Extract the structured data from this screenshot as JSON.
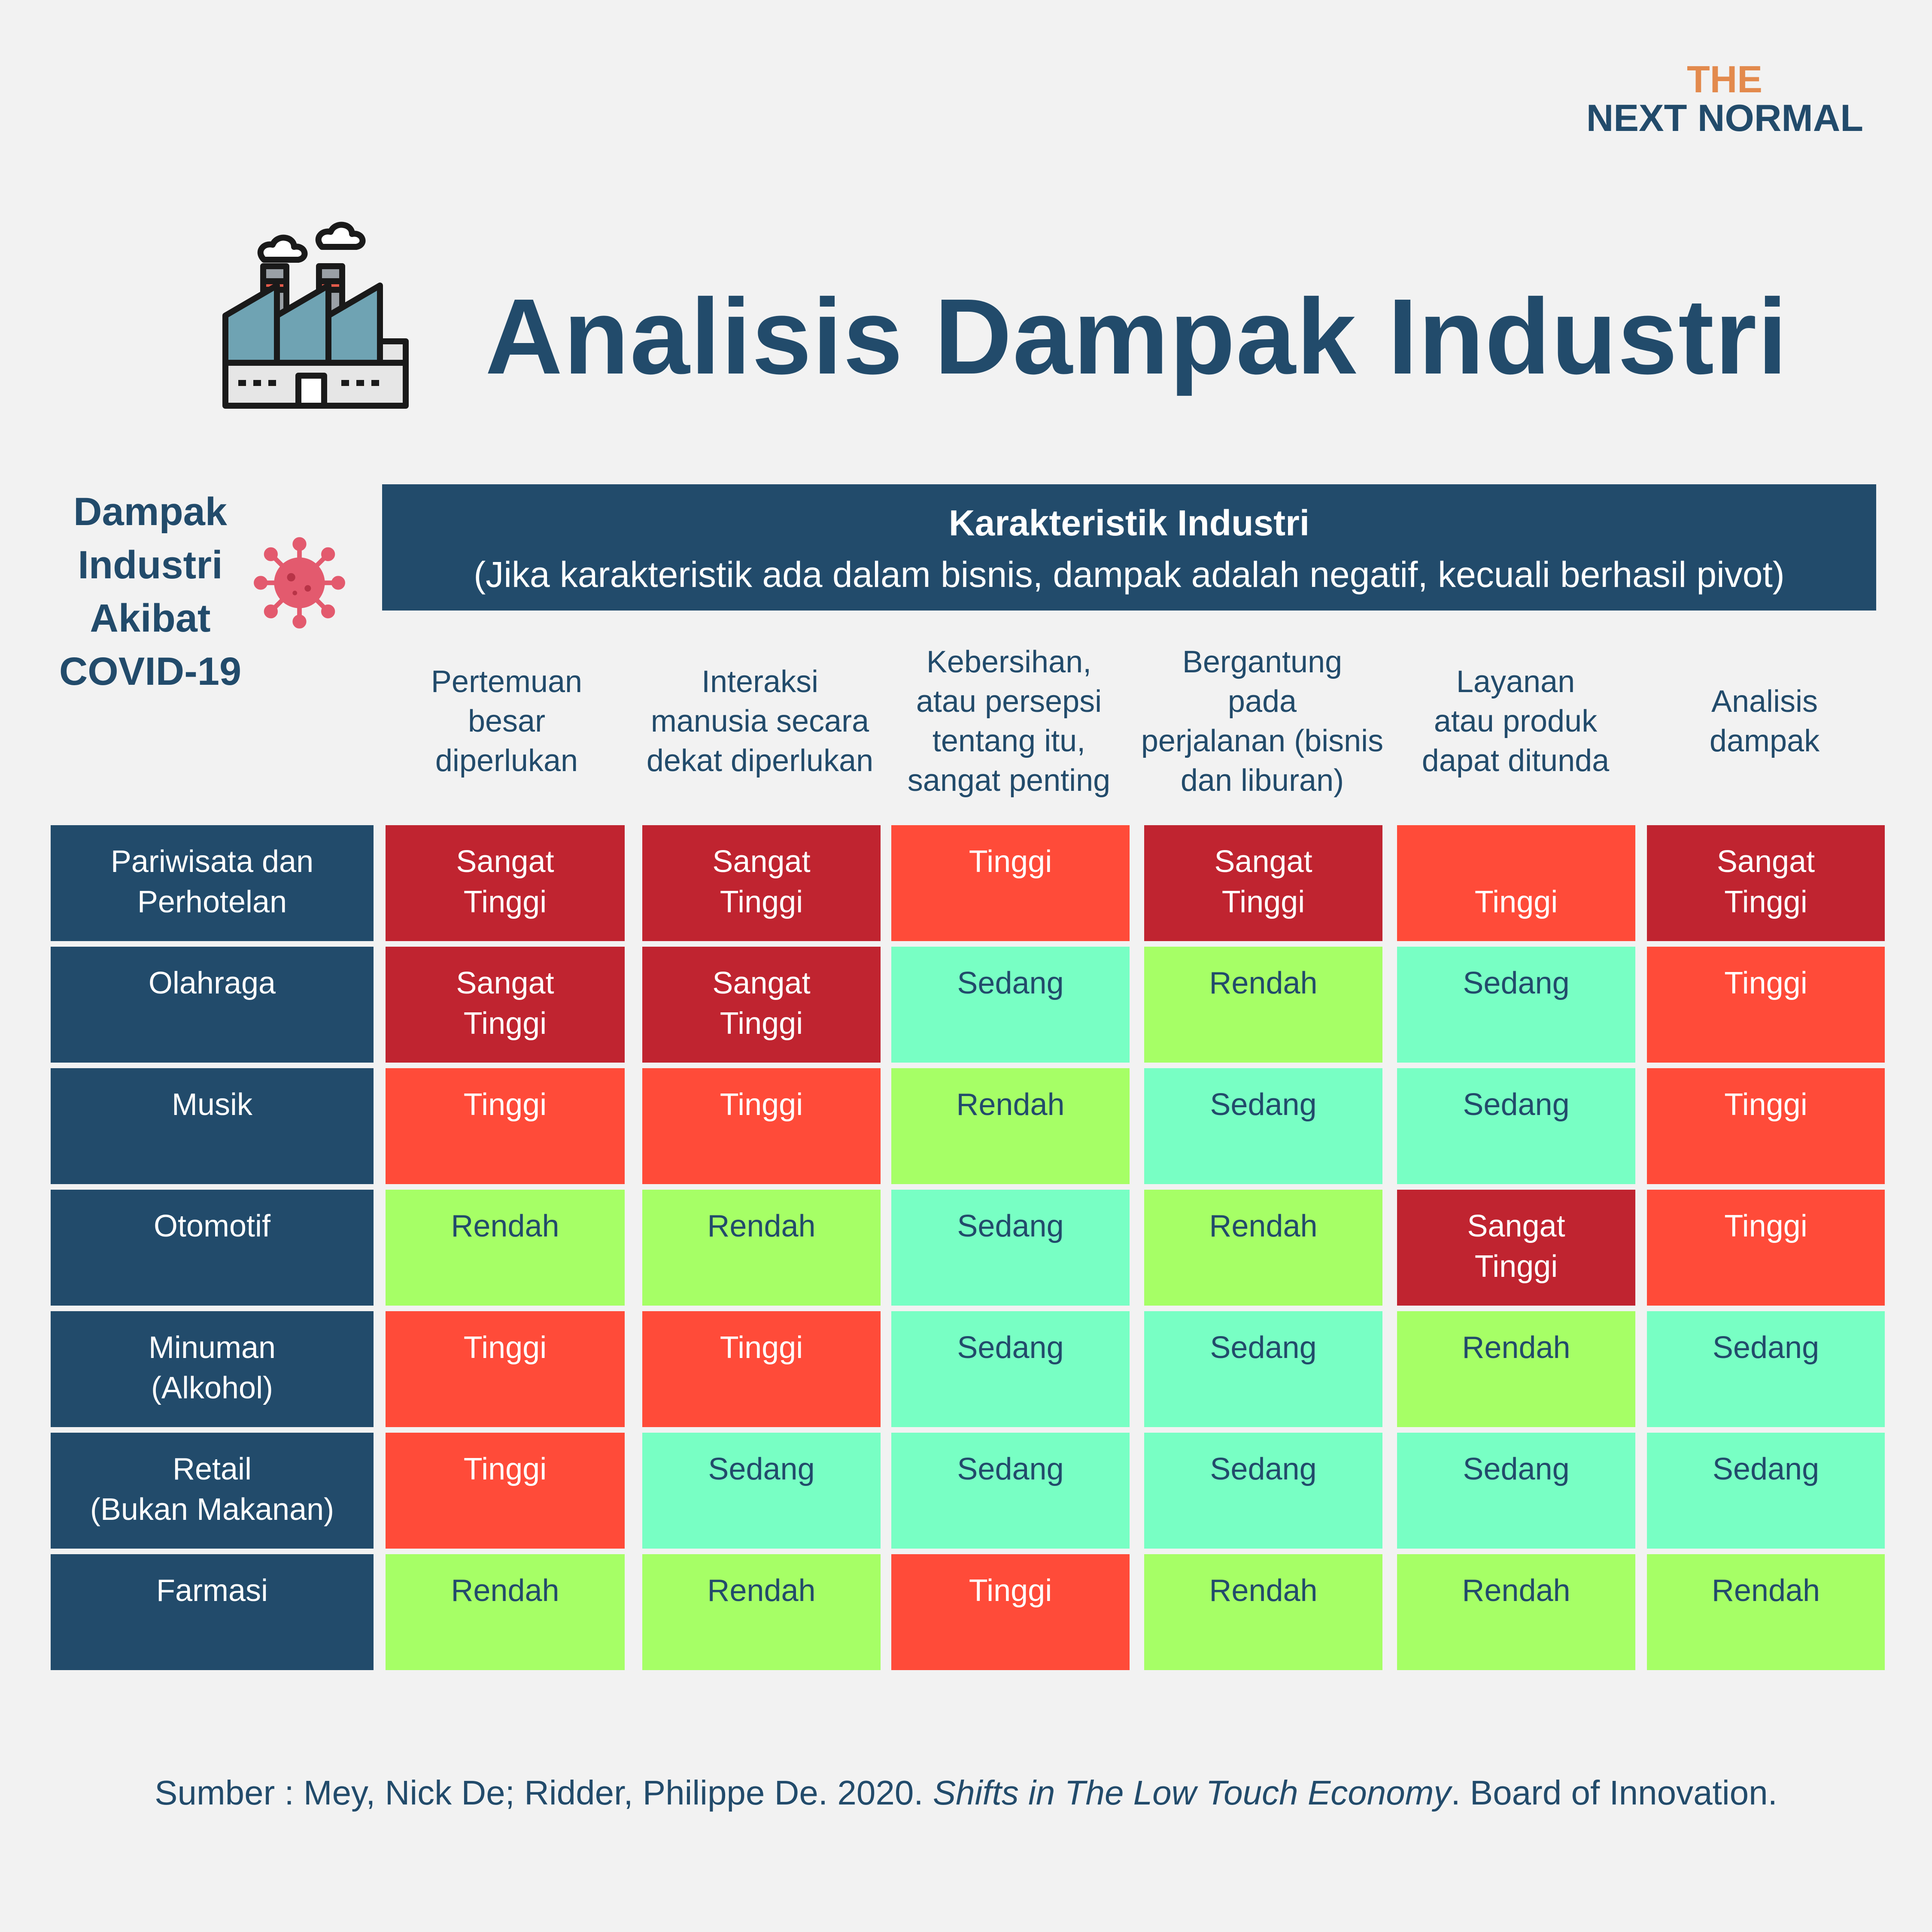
{
  "brand": {
    "line1": "THE",
    "line2": "NEXT NORMAL"
  },
  "title": "Analisis Dampak Industri",
  "side_label": [
    "Dampak",
    "Industri",
    "Akibat",
    "COVID-19"
  ],
  "header": {
    "title": "Karakteristik Industri",
    "subtitle": "(Jika karakteristik ada dalam bisnis, dampak adalah negatif, kecuali berhasil pivot)"
  },
  "icons": {
    "title_icon": "factory-icon",
    "side_icon": "virus-icon"
  },
  "colors": {
    "primary": "#224b6b",
    "accent": "#e38a4d",
    "background": "#f2f2f2",
    "sangat_tinggi": "#c02430",
    "tinggi": "#ff4b39",
    "sedang": "#78ffc4",
    "rendah": "#a6ff66",
    "virus": "#e35a6e"
  },
  "chart_data": {
    "type": "table",
    "columns": [
      "Pertemuan besar diperlukan",
      "Interaksi manusia secara dekat diperlukan",
      "Kebersihan, atau persepsi tentang itu, sangat penting",
      "Bergantung pada perjalanan (bisnis dan liburan)",
      "Layanan atau produk dapat ditunda",
      "Analisis dampak"
    ],
    "rows": [
      {
        "label": "Pariwisata dan Perhotelan",
        "values": [
          "Sangat Tinggi",
          "Sangat Tinggi",
          "Tinggi",
          "Sangat Tinggi",
          "Tinggi",
          "Sangat Tinggi"
        ]
      },
      {
        "label": "Olahraga",
        "values": [
          "Sangat Tinggi",
          "Sangat Tinggi",
          "Sedang",
          "Rendah",
          "Sedang",
          "Tinggi"
        ]
      },
      {
        "label": "Musik",
        "values": [
          "Tinggi",
          "Tinggi",
          "Rendah",
          "Sedang",
          "Sedang",
          "Tinggi"
        ]
      },
      {
        "label": "Otomotif",
        "values": [
          "Rendah",
          "Rendah",
          "Sedang",
          "Rendah",
          "Sangat Tinggi",
          "Tinggi"
        ]
      },
      {
        "label": "Minuman (Alkohol)",
        "values": [
          "Tinggi",
          "Tinggi",
          "Sedang",
          "Sedang",
          "Rendah",
          "Sedang"
        ]
      },
      {
        "label": "Retail (Bukan Makanan)",
        "values": [
          "Tinggi",
          "Sedang",
          "Sedang",
          "Sedang",
          "Sedang",
          "Sedang"
        ]
      },
      {
        "label": "Farmasi",
        "values": [
          "Rendah",
          "Rendah",
          "Tinggi",
          "Rendah",
          "Rendah",
          "Rendah"
        ]
      }
    ],
    "levels": [
      "Sangat Tinggi",
      "Tinggi",
      "Sedang",
      "Rendah"
    ]
  },
  "source": {
    "prefix": "Sumber : Mey, Nick De; Ridder, Philippe De. 2020. ",
    "title": "Shifts in The Low Touch Economy",
    "suffix": ". Board of Innovation."
  }
}
